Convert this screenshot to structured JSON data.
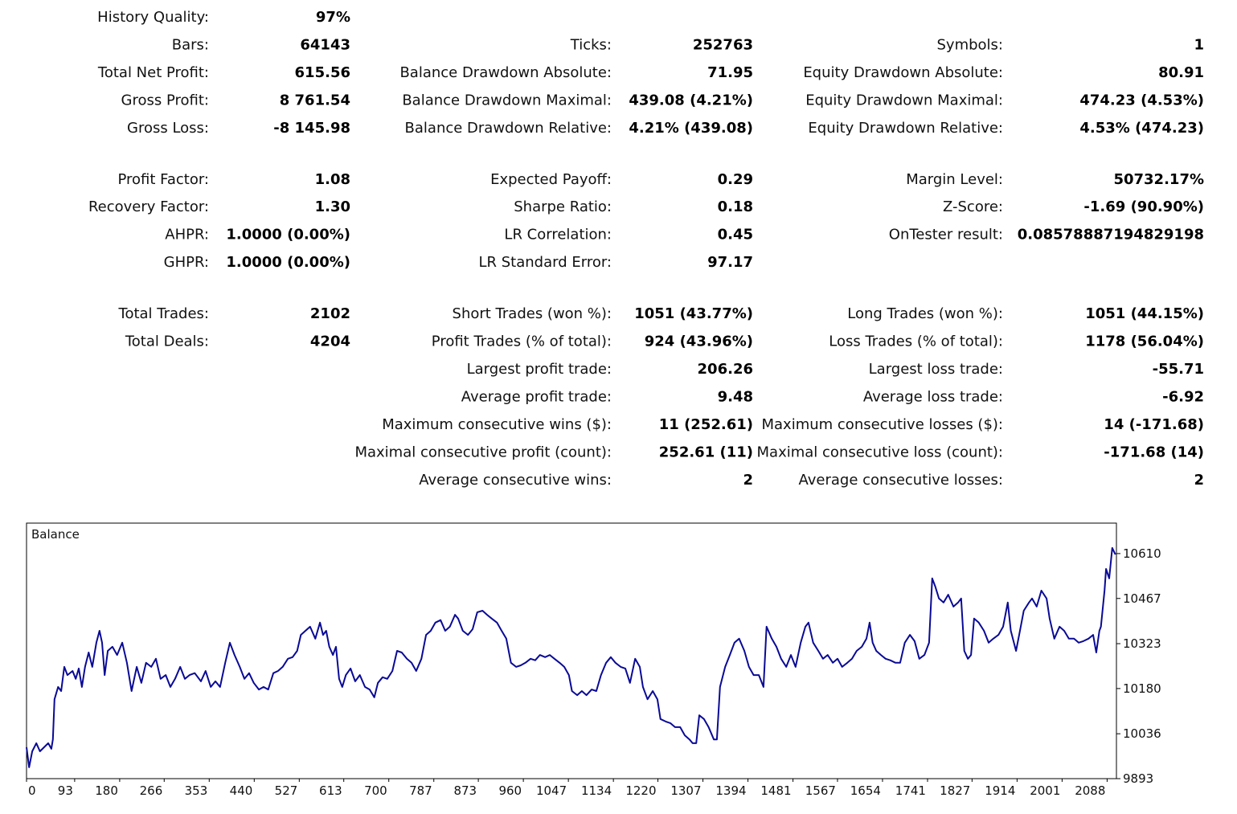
{
  "stats": {
    "sections": [
      {
        "rows": [
          {
            "left": {
              "label": "History Quality:",
              "value": "97%"
            }
          },
          {
            "left": {
              "label": "Bars:",
              "value": "64143"
            },
            "middle": {
              "label": "Ticks:",
              "value": "252763"
            },
            "right": {
              "label": "Symbols:",
              "value": "1"
            }
          },
          {
            "left": {
              "label": "Total Net Profit:",
              "value": "615.56"
            },
            "middle": {
              "label": "Balance Drawdown Absolute:",
              "value": "71.95"
            },
            "right": {
              "label": "Equity Drawdown Absolute:",
              "value": "80.91"
            }
          },
          {
            "left": {
              "label": "Gross Profit:",
              "value": "8 761.54"
            },
            "middle": {
              "label": "Balance Drawdown Maximal:",
              "value": "439.08 (4.21%)"
            },
            "right": {
              "label": "Equity Drawdown Maximal:",
              "value": "474.23 (4.53%)"
            }
          },
          {
            "left": {
              "label": "Gross Loss:",
              "value": "-8 145.98"
            },
            "middle": {
              "label": "Balance Drawdown Relative:",
              "value": "4.21% (439.08)"
            },
            "right": {
              "label": "Equity Drawdown Relative:",
              "value": "4.53% (474.23)"
            }
          }
        ]
      },
      {
        "rows": [
          {
            "left": {
              "label": "Profit Factor:",
              "value": "1.08"
            },
            "middle": {
              "label": "Expected Payoff:",
              "value": "0.29"
            },
            "right": {
              "label": "Margin Level:",
              "value": "50732.17%"
            }
          },
          {
            "left": {
              "label": "Recovery Factor:",
              "value": "1.30"
            },
            "middle": {
              "label": "Sharpe Ratio:",
              "value": "0.18"
            },
            "right": {
              "label": "Z-Score:",
              "value": "-1.69 (90.90%)"
            }
          },
          {
            "left": {
              "label": "AHPR:",
              "value": "1.0000 (0.00%)"
            },
            "middle": {
              "label": "LR Correlation:",
              "value": "0.45"
            },
            "right": {
              "label": "OnTester result:",
              "value": "0.08578887194829198"
            }
          },
          {
            "left": {
              "label": "GHPR:",
              "value": "1.0000 (0.00%)"
            },
            "middle": {
              "label": "LR Standard Error:",
              "value": "97.17"
            }
          }
        ]
      },
      {
        "rows": [
          {
            "left": {
              "label": "Total Trades:",
              "value": "2102"
            },
            "middle": {
              "label": "Short Trades (won %):",
              "value": "1051 (43.77%)"
            },
            "right": {
              "label": "Long Trades (won %):",
              "value": "1051 (44.15%)"
            }
          },
          {
            "left": {
              "label": "Total Deals:",
              "value": "4204"
            },
            "middle": {
              "label": "Profit Trades (% of total):",
              "value": "924 (43.96%)"
            },
            "right": {
              "label": "Loss Trades (% of total):",
              "value": "1178 (56.04%)"
            }
          },
          {
            "middle": {
              "label": "Largest profit trade:",
              "value": "206.26"
            },
            "right": {
              "label": "Largest loss trade:",
              "value": "-55.71"
            }
          },
          {
            "middle": {
              "label": "Average profit trade:",
              "value": "9.48"
            },
            "right": {
              "label": "Average loss trade:",
              "value": "-6.92"
            }
          },
          {
            "middle": {
              "label": "Maximum consecutive wins ($):",
              "value": "11 (252.61)"
            },
            "right": {
              "label": "Maximum consecutive losses ($):",
              "value": "14 (-171.68)"
            }
          },
          {
            "middle": {
              "label": "Maximal consecutive profit (count):",
              "value": "252.61 (11)"
            },
            "right": {
              "label": "Maximal consecutive loss (count):",
              "value": "-171.68 (14)"
            }
          },
          {
            "middle": {
              "label": "Average consecutive wins:",
              "value": "2"
            },
            "right": {
              "label": "Average consecutive losses:",
              "value": "2"
            }
          }
        ]
      }
    ]
  },
  "chart_data": {
    "type": "line",
    "title": "Balance",
    "color": "#0a0a96",
    "grid": true,
    "xlim": [
      0,
      2106
    ],
    "ylim": [
      9893,
      10707
    ],
    "xticks": [
      0,
      93,
      180,
      266,
      353,
      440,
      527,
      613,
      700,
      787,
      873,
      960,
      1047,
      1134,
      1220,
      1307,
      1394,
      1481,
      1567,
      1654,
      1741,
      1827,
      1914,
      2001,
      2088
    ],
    "yticks": [
      9893,
      10036,
      10180,
      10323,
      10467,
      10610
    ],
    "x": [
      0,
      5,
      11,
      19,
      26,
      34,
      42,
      48,
      51,
      54,
      61,
      67,
      73,
      79,
      89,
      95,
      101,
      107,
      113,
      120,
      127,
      135,
      141,
      146,
      151,
      157,
      166,
      175,
      185,
      194,
      203,
      213,
      222,
      231,
      241,
      250,
      259,
      269,
      278,
      287,
      297,
      306,
      315,
      325,
      337,
      346,
      356,
      365,
      374,
      384,
      393,
      402,
      412,
      421,
      430,
      439,
      449,
      458,
      467,
      477,
      486,
      495,
      505,
      514,
      523,
      530,
      539,
      548,
      558,
      567,
      573,
      579,
      585,
      592,
      598,
      604,
      610,
      617,
      626,
      635,
      644,
      654,
      663,
      672,
      679,
      688,
      697,
      707,
      716,
      725,
      735,
      744,
      753,
      763,
      772,
      781,
      790,
      800,
      809,
      818,
      828,
      834,
      843,
      853,
      862,
      871,
      881,
      890,
      899,
      909,
      918,
      927,
      936,
      946,
      955,
      964,
      974,
      983,
      992,
      1002,
      1011,
      1020,
      1030,
      1039,
      1048,
      1054,
      1064,
      1073,
      1082,
      1092,
      1101,
      1110,
      1120,
      1129,
      1138,
      1148,
      1157,
      1166,
      1176,
      1185,
      1191,
      1200,
      1210,
      1219,
      1225,
      1235,
      1244,
      1253,
      1263,
      1272,
      1281,
      1287,
      1294,
      1300,
      1309,
      1318,
      1328,
      1334,
      1340,
      1350,
      1359,
      1368,
      1377,
      1387,
      1396,
      1405,
      1415,
      1424,
      1430,
      1440,
      1449,
      1458,
      1468,
      1477,
      1486,
      1496,
      1505,
      1511,
      1520,
      1530,
      1539,
      1548,
      1558,
      1567,
      1576,
      1586,
      1595,
      1604,
      1614,
      1623,
      1629,
      1635,
      1642,
      1651,
      1660,
      1669,
      1679,
      1688,
      1697,
      1707,
      1716,
      1725,
      1735,
      1744,
      1750,
      1756,
      1763,
      1772,
      1781,
      1791,
      1800,
      1806,
      1812,
      1819,
      1825,
      1831,
      1840,
      1850,
      1859,
      1868,
      1878,
      1887,
      1896,
      1902,
      1912,
      1918,
      1927,
      1937,
      1943,
      1952,
      1961,
      1971,
      1977,
      1986,
      1996,
      2005,
      2014,
      2024,
      2033,
      2042,
      2052,
      2061,
      2067,
      2073,
      2076,
      2083,
      2086,
      2092,
      2098,
      2104
    ],
    "values": [
      9993,
      9929,
      9980,
      10006,
      9980,
      9993,
      10006,
      9988,
      10018,
      10146,
      10185,
      10172,
      10249,
      10223,
      10236,
      10211,
      10244,
      10185,
      10249,
      10295,
      10249,
      10326,
      10364,
      10326,
      10223,
      10300,
      10313,
      10287,
      10326,
      10262,
      10172,
      10249,
      10198,
      10262,
      10249,
      10275,
      10211,
      10223,
      10185,
      10211,
      10249,
      10211,
      10223,
      10229,
      10203,
      10236,
      10185,
      10203,
      10185,
      10262,
      10326,
      10287,
      10249,
      10211,
      10229,
      10198,
      10177,
      10185,
      10177,
      10229,
      10236,
      10249,
      10275,
      10280,
      10300,
      10351,
      10364,
      10377,
      10339,
      10390,
      10351,
      10364,
      10313,
      10287,
      10313,
      10211,
      10185,
      10223,
      10244,
      10203,
      10223,
      10185,
      10177,
      10152,
      10198,
      10216,
      10211,
      10236,
      10300,
      10295,
      10275,
      10262,
      10236,
      10275,
      10351,
      10364,
      10390,
      10398,
      10364,
      10377,
      10415,
      10403,
      10364,
      10351,
      10369,
      10423,
      10428,
      10415,
      10403,
      10390,
      10364,
      10339,
      10262,
      10249,
      10254,
      10262,
      10275,
      10270,
      10287,
      10280,
      10287,
      10275,
      10262,
      10249,
      10223,
      10172,
      10159,
      10172,
      10159,
      10177,
      10172,
      10223,
      10262,
      10280,
      10262,
      10249,
      10244,
      10198,
      10275,
      10249,
      10185,
      10146,
      10172,
      10146,
      10083,
      10075,
      10070,
      10057,
      10057,
      10031,
      10018,
      10006,
      10006,
      10095,
      10083,
      10057,
      10018,
      10018,
      10185,
      10249,
      10287,
      10326,
      10339,
      10300,
      10249,
      10223,
      10223,
      10185,
      10377,
      10339,
      10313,
      10275,
      10249,
      10287,
      10249,
      10326,
      10377,
      10390,
      10326,
      10300,
      10275,
      10287,
      10262,
      10275,
      10249,
      10262,
      10275,
      10300,
      10313,
      10339,
      10390,
      10326,
      10300,
      10287,
      10275,
      10270,
      10262,
      10262,
      10326,
      10351,
      10331,
      10275,
      10287,
      10326,
      10531,
      10505,
      10467,
      10454,
      10479,
      10441,
      10454,
      10467,
      10300,
      10275,
      10287,
      10403,
      10390,
      10364,
      10326,
      10339,
      10351,
      10377,
      10454,
      10364,
      10300,
      10351,
      10428,
      10454,
      10467,
      10441,
      10492,
      10467,
      10403,
      10339,
      10377,
      10364,
      10339,
      10339,
      10326,
      10331,
      10339,
      10351,
      10295,
      10364,
      10377,
      10492,
      10561,
      10531,
      10628,
      10607
    ]
  }
}
